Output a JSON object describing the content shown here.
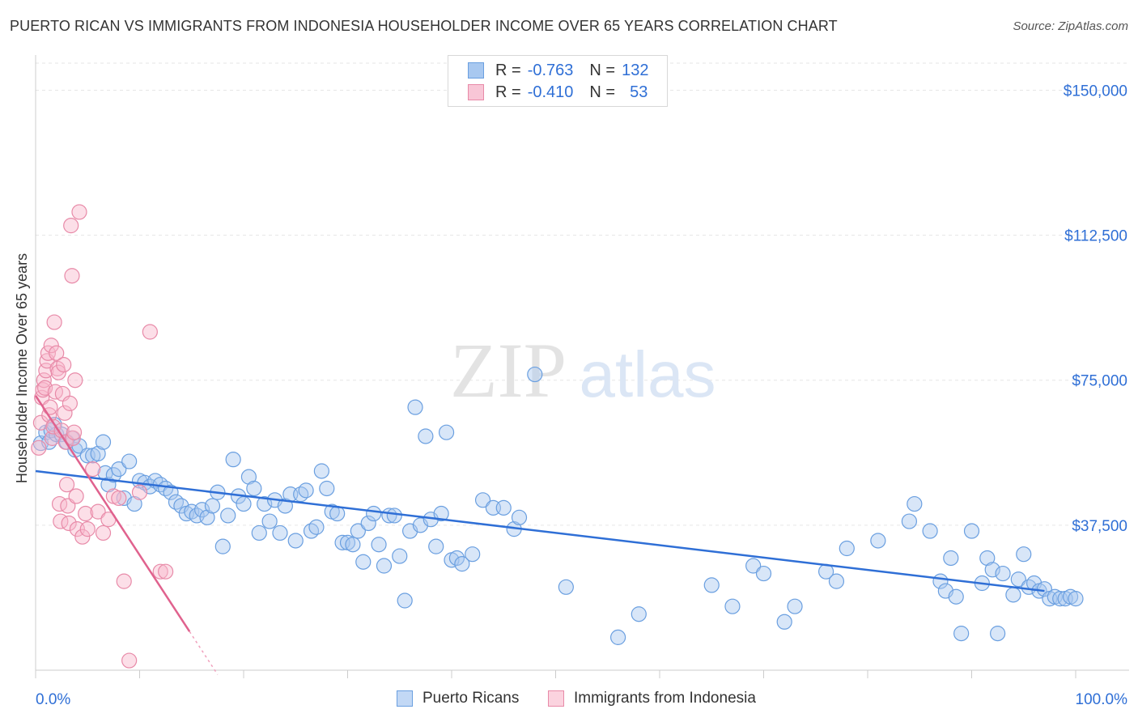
{
  "header": {
    "title": "PUERTO RICAN VS IMMIGRANTS FROM INDONESIA HOUSEHOLDER INCOME OVER 65 YEARS CORRELATION CHART",
    "source": "Source: ZipAtlas.com"
  },
  "watermark": {
    "part1": "ZIP",
    "part2": "atlas"
  },
  "legend": {
    "rows": [
      {
        "r_label": "R =",
        "r_value": "-0.763",
        "n_label": "N =",
        "n_value": "132",
        "color": "#a8c8f0",
        "stroke": "#6a9fe0"
      },
      {
        "r_label": "R =",
        "r_value": "-0.410",
        "n_label": "N =",
        "n_value": "53",
        "color": "#f8b8cc",
        "stroke": "#e88aa8"
      }
    ]
  },
  "bottom_legend": {
    "items": [
      {
        "label": "Puerto Ricans",
        "color": "#a8c8f0",
        "stroke": "#6a9fe0"
      },
      {
        "label": "Immigrants from Indonesia",
        "color": "#f8b8cc",
        "stroke": "#e88aa8"
      }
    ]
  },
  "chart_data": {
    "type": "scatter",
    "title": "PUERTO RICAN VS IMMIGRANTS FROM INDONESIA HOUSEHOLDER INCOME OVER 65 YEARS CORRELATION CHART",
    "xlabel": "",
    "ylabel": "Householder Income Over 65 years",
    "xlim": [
      0,
      100
    ],
    "ylim": [
      0,
      157000
    ],
    "x_tick_labels": [
      "0.0%",
      "100.0%"
    ],
    "y_ticks": [
      37500,
      75000,
      112500,
      150000
    ],
    "y_tick_labels": [
      "$37,500",
      "$75,000",
      "$112,500",
      "$150,000"
    ],
    "grid": true,
    "legend_position": "top-center",
    "colors": {
      "blue": "#2f6fd6",
      "pink": "#e0628e",
      "tick_label": "#2f6fd6"
    },
    "series": [
      {
        "name": "Puerto Ricans",
        "color": "#a8c8f0",
        "stroke": "#6a9fe0",
        "trend": {
          "x0": 0,
          "y0": 51500,
          "x1": 97,
          "y1": 20500
        },
        "points": [
          [
            0.5,
            58700
          ],
          [
            1.0,
            61500
          ],
          [
            1.3,
            59000
          ],
          [
            1.5,
            62000
          ],
          [
            2.0,
            61000
          ],
          [
            1.8,
            63500
          ],
          [
            2.5,
            61000
          ],
          [
            3.0,
            59000
          ],
          [
            3.5,
            60000
          ],
          [
            3.8,
            57000
          ],
          [
            4.2,
            58000
          ],
          [
            5.0,
            55500
          ],
          [
            5.5,
            55500
          ],
          [
            6.0,
            56000
          ],
          [
            6.5,
            59000
          ],
          [
            6.7,
            51000
          ],
          [
            7.0,
            48000
          ],
          [
            7.5,
            50500
          ],
          [
            8.0,
            52000
          ],
          [
            8.5,
            44500
          ],
          [
            9.0,
            54000
          ],
          [
            9.5,
            43000
          ],
          [
            10.0,
            49000
          ],
          [
            10.5,
            48500
          ],
          [
            11.0,
            47500
          ],
          [
            11.5,
            49000
          ],
          [
            12.0,
            48000
          ],
          [
            12.5,
            47000
          ],
          [
            13.0,
            46000
          ],
          [
            13.5,
            43500
          ],
          [
            14.0,
            42500
          ],
          [
            14.5,
            40500
          ],
          [
            15.0,
            41000
          ],
          [
            15.5,
            40000
          ],
          [
            16.0,
            41500
          ],
          [
            16.5,
            39500
          ],
          [
            17.0,
            42500
          ],
          [
            17.5,
            46000
          ],
          [
            18.0,
            32000
          ],
          [
            18.5,
            40000
          ],
          [
            19.0,
            54500
          ],
          [
            19.5,
            45000
          ],
          [
            20.0,
            43000
          ],
          [
            20.5,
            50000
          ],
          [
            21.0,
            47000
          ],
          [
            21.5,
            35500
          ],
          [
            22.0,
            43000
          ],
          [
            22.5,
            38500
          ],
          [
            23.0,
            44000
          ],
          [
            23.5,
            35500
          ],
          [
            24.0,
            42500
          ],
          [
            24.5,
            45500
          ],
          [
            25.0,
            33500
          ],
          [
            25.5,
            45500
          ],
          [
            26.0,
            46500
          ],
          [
            26.5,
            36000
          ],
          [
            27.0,
            37000
          ],
          [
            27.5,
            51500
          ],
          [
            28.0,
            47000
          ],
          [
            28.5,
            41000
          ],
          [
            29.0,
            40500
          ],
          [
            29.5,
            33000
          ],
          [
            30.0,
            33000
          ],
          [
            30.5,
            32500
          ],
          [
            31.0,
            36000
          ],
          [
            31.5,
            28000
          ],
          [
            32.0,
            38000
          ],
          [
            32.5,
            40500
          ],
          [
            33.0,
            32500
          ],
          [
            33.5,
            27000
          ],
          [
            34.0,
            40000
          ],
          [
            34.5,
            40000
          ],
          [
            35.0,
            29500
          ],
          [
            35.5,
            18000
          ],
          [
            36.0,
            36000
          ],
          [
            36.5,
            68000
          ],
          [
            37.0,
            37500
          ],
          [
            37.5,
            60500
          ],
          [
            38.0,
            39000
          ],
          [
            38.5,
            32000
          ],
          [
            39.0,
            40500
          ],
          [
            39.5,
            61500
          ],
          [
            40.0,
            28500
          ],
          [
            40.5,
            29000
          ],
          [
            41.0,
            27500
          ],
          [
            42.0,
            30000
          ],
          [
            43.0,
            44000
          ],
          [
            44.0,
            42000
          ],
          [
            45.0,
            42000
          ],
          [
            46.0,
            36500
          ],
          [
            46.5,
            39500
          ],
          [
            48.0,
            76500
          ],
          [
            51.0,
            21500
          ],
          [
            56.0,
            8500
          ],
          [
            58.0,
            14500
          ],
          [
            65.0,
            22000
          ],
          [
            67.0,
            16500
          ],
          [
            69.0,
            27000
          ],
          [
            70.0,
            25000
          ],
          [
            72.0,
            12500
          ],
          [
            73.0,
            16500
          ],
          [
            76.0,
            25500
          ],
          [
            77.0,
            23000
          ],
          [
            78.0,
            31500
          ],
          [
            81.0,
            33500
          ],
          [
            84.0,
            38500
          ],
          [
            84.5,
            43000
          ],
          [
            86.0,
            36000
          ],
          [
            87.0,
            23000
          ],
          [
            87.5,
            20500
          ],
          [
            88.0,
            29000
          ],
          [
            88.5,
            19000
          ],
          [
            89.0,
            9500
          ],
          [
            90.0,
            36000
          ],
          [
            91.0,
            22500
          ],
          [
            91.5,
            29000
          ],
          [
            92.0,
            26000
          ],
          [
            92.5,
            9500
          ],
          [
            93.0,
            25000
          ],
          [
            94.0,
            19500
          ],
          [
            94.5,
            23500
          ],
          [
            95.0,
            30000
          ],
          [
            95.5,
            21500
          ],
          [
            96.0,
            22500
          ],
          [
            96.5,
            20500
          ],
          [
            97.0,
            21000
          ],
          [
            97.5,
            18500
          ],
          [
            98.0,
            19000
          ],
          [
            98.5,
            18500
          ],
          [
            99.0,
            18500
          ],
          [
            99.5,
            19000
          ],
          [
            100.0,
            18500
          ]
        ]
      },
      {
        "name": "Immigrants from Indonesia",
        "color": "#f8b8cc",
        "stroke": "#e88aa8",
        "trend": {
          "x0": 0,
          "y0": 71000,
          "x1": 14.8,
          "y1": 10000,
          "dash_to_x": 17.5
        },
        "points": [
          [
            0.3,
            57500
          ],
          [
            0.5,
            64000
          ],
          [
            0.6,
            70500
          ],
          [
            0.7,
            72500
          ],
          [
            0.8,
            75000
          ],
          [
            0.9,
            73000
          ],
          [
            1.0,
            77500
          ],
          [
            1.1,
            80000
          ],
          [
            1.2,
            82000
          ],
          [
            1.3,
            66000
          ],
          [
            1.4,
            68000
          ],
          [
            1.5,
            84000
          ],
          [
            1.6,
            60000
          ],
          [
            1.7,
            63000
          ],
          [
            1.8,
            90000
          ],
          [
            1.9,
            72000
          ],
          [
            2.0,
            82000
          ],
          [
            2.1,
            78000
          ],
          [
            2.2,
            77000
          ],
          [
            2.3,
            43000
          ],
          [
            2.4,
            38500
          ],
          [
            2.5,
            62000
          ],
          [
            2.6,
            71500
          ],
          [
            2.7,
            79000
          ],
          [
            2.8,
            66500
          ],
          [
            2.9,
            59000
          ],
          [
            3.0,
            48000
          ],
          [
            3.1,
            42500
          ],
          [
            3.2,
            38000
          ],
          [
            3.3,
            69000
          ],
          [
            3.4,
            115000
          ],
          [
            3.5,
            102000
          ],
          [
            3.6,
            60000
          ],
          [
            3.7,
            61500
          ],
          [
            3.8,
            75000
          ],
          [
            3.9,
            45000
          ],
          [
            4.0,
            36500
          ],
          [
            4.2,
            118500
          ],
          [
            4.5,
            34500
          ],
          [
            4.8,
            40500
          ],
          [
            5.0,
            36500
          ],
          [
            5.5,
            52000
          ],
          [
            6.0,
            41000
          ],
          [
            6.5,
            35500
          ],
          [
            7.0,
            39000
          ],
          [
            7.5,
            45000
          ],
          [
            8.0,
            44500
          ],
          [
            8.5,
            23000
          ],
          [
            9.0,
            2500
          ],
          [
            10.0,
            46000
          ],
          [
            11.0,
            87500
          ],
          [
            12.0,
            25500
          ],
          [
            12.5,
            25500
          ]
        ]
      }
    ]
  }
}
